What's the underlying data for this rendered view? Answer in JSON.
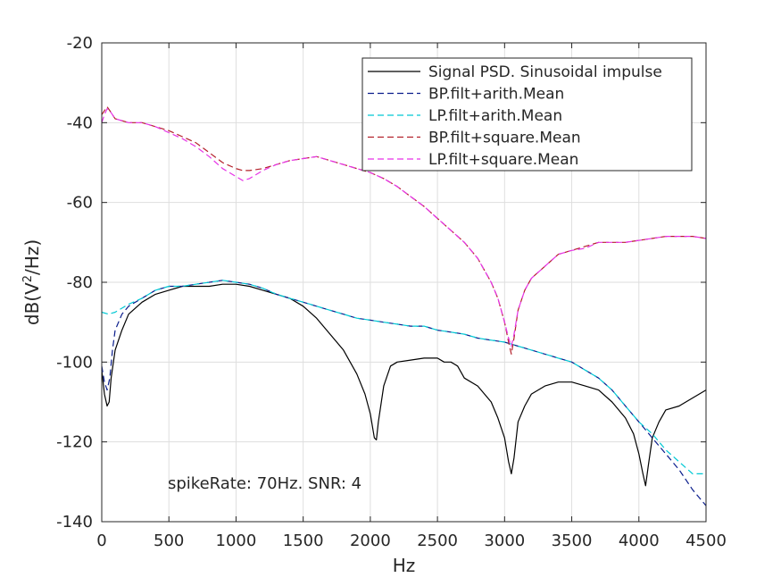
{
  "chart_data": {
    "type": "line",
    "xlabel": "Hz",
    "ylabel": "dB(V^2/Hz)",
    "ylabel_parts": {
      "prefix": "dB(V",
      "sup": "2",
      "suffix": "/Hz)"
    },
    "xlim": [
      0,
      4500
    ],
    "ylim": [
      -140,
      -20
    ],
    "xticks": [
      0,
      500,
      1000,
      1500,
      2000,
      2500,
      3000,
      3500,
      4000,
      4500
    ],
    "yticks": [
      -140,
      -120,
      -100,
      -80,
      -60,
      -40,
      -20
    ],
    "xtick_labels": [
      "0",
      "500",
      "1000",
      "1500",
      "2000",
      "2500",
      "3000",
      "3500",
      "4000",
      "4500"
    ],
    "ytick_labels": [
      "-140",
      "-120",
      "-100",
      "-80",
      "-60",
      "-40",
      "-20"
    ],
    "grid": true,
    "legend_position": "top-right",
    "annotation": "spikeRate: 70Hz. SNR: 4",
    "series": [
      {
        "name": "Signal PSD. Sinusoidal impulse",
        "color": "#000000",
        "dash": "solid",
        "x": [
          0,
          20,
          40,
          55,
          70,
          100,
          150,
          200,
          300,
          400,
          500,
          600,
          700,
          800,
          900,
          1000,
          1100,
          1200,
          1300,
          1400,
          1500,
          1600,
          1700,
          1800,
          1900,
          1960,
          2000,
          2030,
          2045,
          2060,
          2100,
          2150,
          2200,
          2300,
          2400,
          2500,
          2550,
          2600,
          2650,
          2700,
          2800,
          2900,
          2950,
          3000,
          3030,
          3050,
          3070,
          3100,
          3150,
          3200,
          3300,
          3400,
          3500,
          3600,
          3700,
          3800,
          3900,
          3960,
          4000,
          4030,
          4050,
          4070,
          4100,
          4150,
          4200,
          4300,
          4400,
          4500
        ],
        "y": [
          -102,
          -108,
          -111,
          -110,
          -104,
          -97,
          -92,
          -88,
          -85,
          -83,
          -82,
          -81,
          -81,
          -81,
          -80.5,
          -80.5,
          -81,
          -82,
          -83,
          -84,
          -86,
          -89,
          -93,
          -97,
          -103,
          -108,
          -113,
          -119,
          -119.5,
          -115,
          -106,
          -101,
          -100,
          -99.5,
          -99,
          -99,
          -100,
          -100,
          -101,
          -104,
          -106,
          -110,
          -114,
          -119,
          -125,
          -128,
          -124,
          -115,
          -111,
          -108,
          -106,
          -105,
          -105,
          -106,
          -107,
          -110,
          -114,
          -118,
          -123,
          -128,
          -131,
          -126,
          -119,
          -115,
          -112,
          -111,
          -109,
          -107
        ]
      },
      {
        "name": "BP.filt+arith.Mean",
        "color": "#0a1d8c",
        "dash": "dashed",
        "x": [
          0,
          20,
          40,
          60,
          80,
          100,
          150,
          200,
          300,
          400,
          500,
          600,
          700,
          800,
          900,
          1000,
          1100,
          1200,
          1300,
          1400,
          1500,
          1600,
          1700,
          1800,
          1900,
          2000,
          2100,
          2200,
          2300,
          2400,
          2500,
          2600,
          2700,
          2800,
          2900,
          3000,
          3100,
          3200,
          3300,
          3400,
          3500,
          3600,
          3700,
          3800,
          3900,
          4000,
          4100,
          4200,
          4300,
          4400,
          4500
        ],
        "y": [
          -101,
          -105,
          -107,
          -104,
          -97,
          -92,
          -88,
          -86,
          -84,
          -82,
          -81,
          -81,
          -80.5,
          -80,
          -79.5,
          -80,
          -80.5,
          -81.5,
          -83,
          -84,
          -85,
          -86,
          -87,
          -88,
          -89,
          -89.5,
          -90,
          -90.5,
          -91,
          -91,
          -92,
          -92.5,
          -93,
          -94,
          -94.5,
          -95,
          -96,
          -97,
          -98,
          -99,
          -100,
          -102,
          -104,
          -107,
          -111,
          -115,
          -119,
          -123,
          -127,
          -132,
          -136
        ]
      },
      {
        "name": "LP.filt+arith.Mean",
        "color": "#00c8d4",
        "dash": "dashed",
        "x": [
          0,
          50,
          100,
          150,
          200,
          300,
          400,
          500,
          600,
          700,
          800,
          900,
          1000,
          1100,
          1200,
          1300,
          1400,
          1500,
          1600,
          1700,
          1800,
          1900,
          2000,
          2100,
          2200,
          2300,
          2400,
          2500,
          2600,
          2700,
          2800,
          2900,
          3000,
          3100,
          3200,
          3300,
          3400,
          3500,
          3600,
          3700,
          3800,
          3900,
          4000,
          4100,
          4200,
          4300,
          4400,
          4500
        ],
        "y": [
          -87.5,
          -88,
          -87.5,
          -86.5,
          -85.5,
          -84,
          -82,
          -81,
          -81,
          -80.5,
          -80,
          -79.5,
          -80,
          -80.5,
          -81.5,
          -83,
          -84,
          -85,
          -86,
          -87,
          -88,
          -89,
          -89.5,
          -90,
          -90.5,
          -91,
          -91,
          -92,
          -92.5,
          -93,
          -94,
          -94.5,
          -95,
          -96,
          -97,
          -98,
          -99,
          -100,
          -102,
          -104,
          -107,
          -111,
          -115,
          -118,
          -122,
          -125,
          -128,
          -128
        ]
      },
      {
        "name": "BP.filt+square.Mean",
        "color": "#b3202a",
        "dash": "dashed",
        "x": [
          0,
          20,
          40,
          60,
          100,
          200,
          300,
          400,
          500,
          600,
          700,
          800,
          900,
          1000,
          1050,
          1100,
          1200,
          1300,
          1400,
          1500,
          1600,
          1700,
          1800,
          1900,
          2000,
          2100,
          2200,
          2300,
          2400,
          2500,
          2600,
          2700,
          2800,
          2900,
          2950,
          3000,
          3030,
          3050,
          3070,
          3100,
          3150,
          3200,
          3300,
          3400,
          3500,
          3600,
          3700,
          3800,
          3900,
          4000,
          4100,
          4200,
          4300,
          4400,
          4500
        ],
        "y": [
          -38,
          -37,
          -36,
          -37,
          -39,
          -40,
          -40,
          -41,
          -42,
          -43.5,
          -45,
          -47.5,
          -50,
          -51.5,
          -52,
          -52,
          -51.5,
          -50.5,
          -49.5,
          -49,
          -48.5,
          -49.5,
          -50.5,
          -51.5,
          -52.5,
          -54,
          -56,
          -58.5,
          -61,
          -64,
          -67,
          -70,
          -74,
          -80,
          -84,
          -90,
          -95,
          -98,
          -94,
          -87,
          -82,
          -79,
          -76,
          -73,
          -72,
          -71,
          -70,
          -70,
          -70,
          -69.5,
          -69,
          -68.5,
          -68.5,
          -68.5,
          -69
        ]
      },
      {
        "name": "LP.filt+square.Mean",
        "color": "#e632e6",
        "dash": "dashed",
        "x": [
          0,
          20,
          40,
          60,
          100,
          200,
          300,
          400,
          500,
          600,
          700,
          800,
          900,
          1000,
          1050,
          1100,
          1200,
          1300,
          1400,
          1500,
          1600,
          1700,
          1800,
          1900,
          2000,
          2100,
          2200,
          2300,
          2400,
          2500,
          2600,
          2700,
          2800,
          2900,
          2950,
          3000,
          3030,
          3050,
          3070,
          3100,
          3150,
          3200,
          3300,
          3400,
          3500,
          3600,
          3700,
          3800,
          3900,
          4000,
          4100,
          4200,
          4300,
          4400,
          4500
        ],
        "y": [
          -40,
          -38,
          -36.5,
          -37,
          -39,
          -40,
          -40,
          -41,
          -42.5,
          -44,
          -46,
          -48.5,
          -51.5,
          -53.5,
          -54.5,
          -54,
          -52,
          -50.5,
          -49.5,
          -49,
          -48.5,
          -49.5,
          -50.5,
          -51.5,
          -52.5,
          -54,
          -56,
          -58.5,
          -61,
          -64,
          -67,
          -70,
          -74,
          -80,
          -84,
          -90,
          -94,
          -96,
          -93,
          -87,
          -82,
          -79,
          -76,
          -73,
          -72,
          -71.5,
          -70,
          -70,
          -70,
          -69.5,
          -69,
          -68.5,
          -68.5,
          -68.5,
          -69
        ]
      }
    ]
  }
}
